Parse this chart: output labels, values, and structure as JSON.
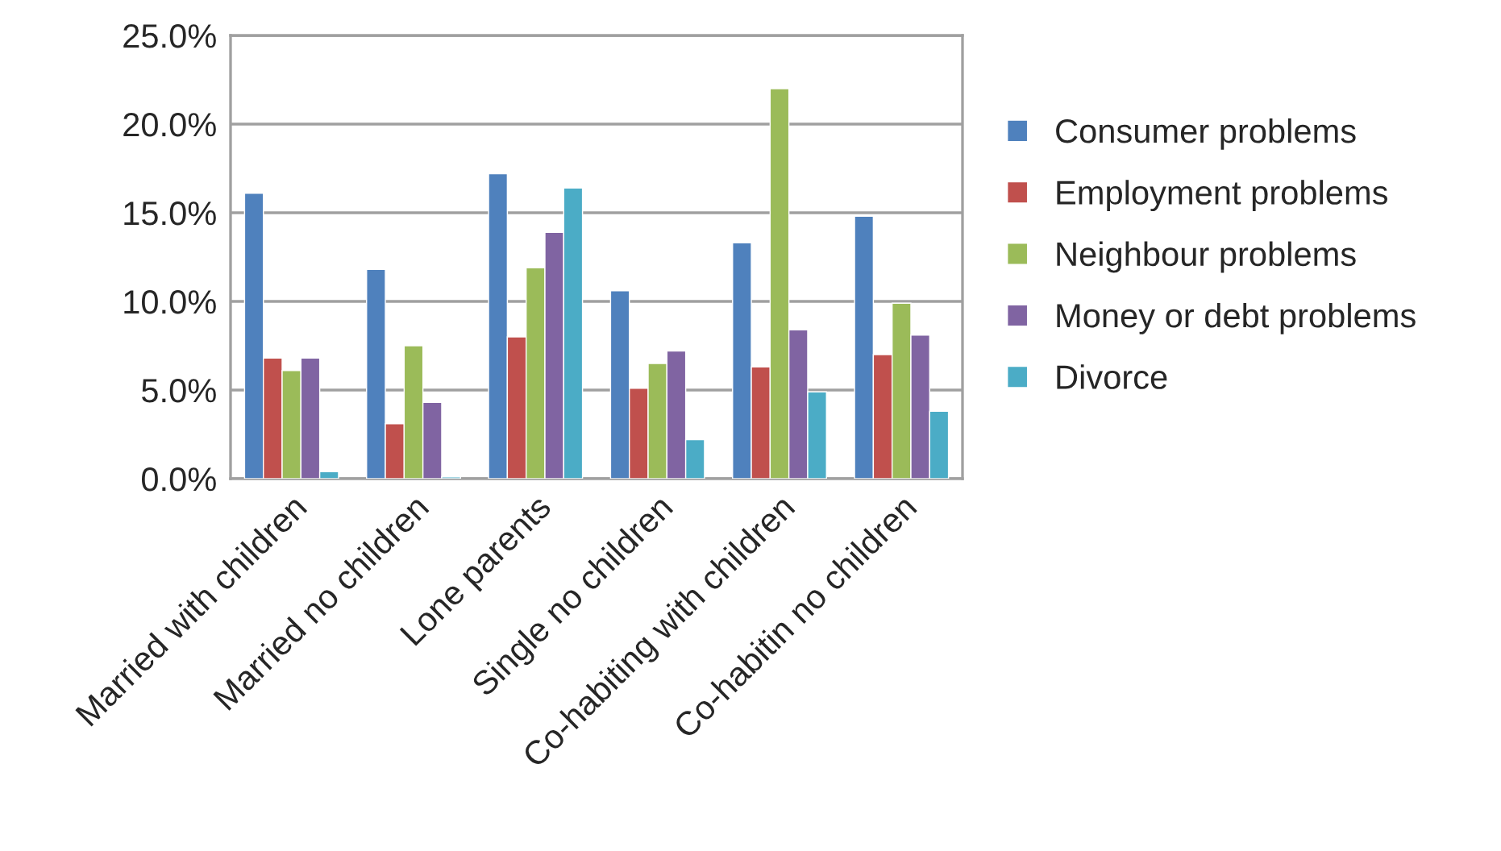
{
  "chart_data": {
    "type": "bar",
    "categories": [
      "Married with children",
      "Married no children",
      "Lone parents",
      "Single no children",
      "Co-habiting with children",
      "Co-habitin no children"
    ],
    "series": [
      {
        "name": "Consumer problems",
        "color": "#4f81bd",
        "values": [
          16.1,
          11.8,
          17.2,
          10.6,
          13.3,
          14.8
        ]
      },
      {
        "name": "Employment problems",
        "color": "#c0504d",
        "values": [
          6.8,
          3.1,
          8.0,
          5.1,
          6.3,
          7.0
        ]
      },
      {
        "name": "Neighbour problems",
        "color": "#9bbb59",
        "values": [
          6.1,
          7.5,
          11.9,
          6.5,
          22.0,
          9.9
        ]
      },
      {
        "name": "Money or debt problems",
        "color": "#8064a2",
        "values": [
          6.8,
          4.3,
          13.9,
          7.2,
          8.4,
          8.1
        ]
      },
      {
        "name": "Divorce",
        "color": "#4bacc6",
        "values": [
          0.4,
          0.1,
          16.4,
          2.2,
          4.9,
          3.8
        ]
      }
    ],
    "ylim": [
      0,
      25
    ],
    "yticks": [
      {
        "value": 0,
        "label": "0.0%"
      },
      {
        "value": 5,
        "label": "5.0%"
      },
      {
        "value": 10,
        "label": "10.0%"
      },
      {
        "value": 15,
        "label": "15.0%"
      },
      {
        "value": 20,
        "label": "20.0%"
      },
      {
        "value": 25,
        "label": "25.0%"
      }
    ],
    "grid": "y",
    "legend": "right"
  }
}
